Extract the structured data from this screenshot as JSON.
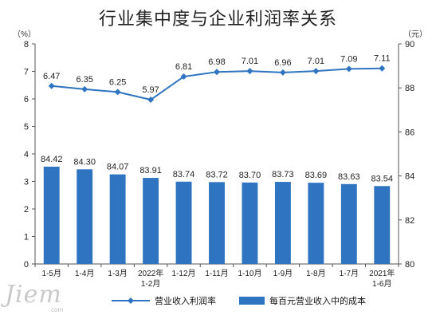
{
  "title": "行业集中度与企业利润率关系",
  "units": {
    "left": "（%）",
    "right": "（元）"
  },
  "legend": [
    {
      "label": "营业收入利润率",
      "marker": "line"
    },
    {
      "label": "每百元营业收入中的成本",
      "marker": "bar"
    }
  ],
  "watermark": {
    "main": "Jiem",
    "sub": "com"
  },
  "colors": {
    "bar": "#2f74c0",
    "line": "#2f74c0",
    "axis": "#555555",
    "text": "#222222"
  },
  "chart_data": {
    "type": "bar",
    "categories": [
      "1-5月",
      "1-4月",
      "1-3月",
      "2022年1-2月",
      "1-12月",
      "1-11月",
      "1-10月",
      "1-9月",
      "1-8月",
      "1-7月",
      "2021年1-6月"
    ],
    "series": [
      {
        "name": "营业收入利润率",
        "type": "line",
        "axis": "left",
        "values": [
          6.47,
          6.35,
          6.25,
          5.97,
          6.81,
          6.98,
          7.01,
          6.96,
          7.01,
          7.09,
          7.11
        ]
      },
      {
        "name": "每百元营业收入中的成本",
        "type": "bar",
        "axis": "right",
        "values": [
          84.42,
          84.3,
          84.07,
          83.91,
          83.74,
          83.72,
          83.7,
          83.73,
          83.69,
          83.63,
          83.54
        ]
      }
    ],
    "yleft": {
      "label": "（%）",
      "ticks": [
        0,
        1,
        2,
        3,
        4,
        5,
        6,
        7,
        8
      ],
      "lim": [
        0,
        8
      ]
    },
    "yright": {
      "label": "（元）",
      "ticks": [
        80,
        82,
        84,
        86,
        88,
        90
      ],
      "lim": [
        80,
        90
      ]
    },
    "grid": false,
    "legend_position": "bottom"
  }
}
